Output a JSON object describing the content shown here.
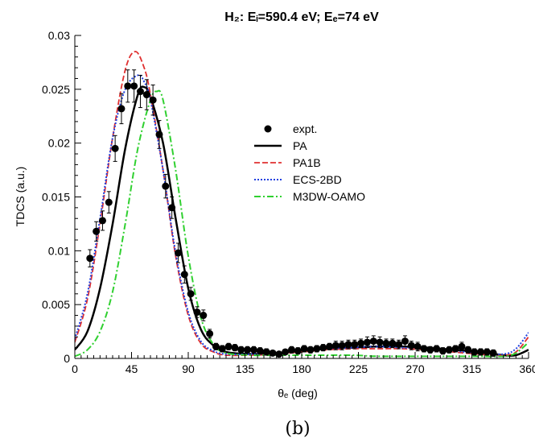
{
  "caption": "(b)",
  "chart_data": {
    "type": "line",
    "title": "H₂: Eᵢ=590.4 eV; Eₑ=74 eV",
    "xlabel": "θₑ (deg)",
    "ylabel": "TDCS (a.u.)",
    "xlim": [
      0,
      360
    ],
    "ylim": [
      0,
      0.03
    ],
    "xticks": [
      0,
      45,
      90,
      135,
      180,
      225,
      270,
      315,
      360
    ],
    "xtick_labels": [
      "0",
      "45",
      "90",
      "135",
      "180",
      "225",
      "270",
      "315",
      "360"
    ],
    "yticks": [
      0,
      0.005,
      0.01,
      0.015,
      0.02,
      0.025,
      0.03
    ],
    "ytick_labels": [
      "0",
      "0.005",
      "0.01",
      "0.015",
      "0.02",
      "0.025",
      "0.03"
    ],
    "grid": false,
    "legend_position": "upper-right",
    "series": [
      {
        "name": "expt.",
        "kind": "scatter",
        "color": "#000000",
        "x": [
          12,
          17,
          22,
          27,
          32,
          37,
          42,
          47,
          52,
          57,
          62,
          67,
          72,
          77,
          82,
          87,
          92,
          97,
          102,
          107,
          112,
          117,
          122,
          127,
          132,
          137,
          142,
          147,
          152,
          157,
          162,
          167,
          172,
          177,
          182,
          187,
          192,
          197,
          202,
          207,
          212,
          217,
          222,
          227,
          232,
          237,
          242,
          247,
          252,
          257,
          262,
          267,
          272,
          277,
          282,
          287,
          292,
          297,
          302,
          307,
          312,
          317,
          322,
          327,
          332
        ],
        "y": [
          0.0093,
          0.0118,
          0.0128,
          0.0145,
          0.0195,
          0.0232,
          0.0253,
          0.0253,
          0.0248,
          0.0245,
          0.024,
          0.0208,
          0.016,
          0.014,
          0.0098,
          0.0078,
          0.006,
          0.0043,
          0.004,
          0.0023,
          0.0011,
          0.0009,
          0.0011,
          0.001,
          0.0008,
          0.0008,
          0.0008,
          0.0007,
          0.0006,
          0.0005,
          0.0004,
          0.0006,
          0.0008,
          0.0007,
          0.0009,
          0.0008,
          0.0009,
          0.001,
          0.0011,
          0.0012,
          0.0012,
          0.0013,
          0.0013,
          0.0014,
          0.0015,
          0.0016,
          0.0015,
          0.0014,
          0.0014,
          0.0013,
          0.0016,
          0.0012,
          0.0011,
          0.0009,
          0.0008,
          0.0009,
          0.0007,
          0.0008,
          0.0009,
          0.0011,
          0.0008,
          0.0006,
          0.0006,
          0.0006,
          0.0005
        ],
        "err": [
          0.0008,
          0.0009,
          0.0009,
          0.001,
          0.0012,
          0.0014,
          0.0015,
          0.0015,
          0.0015,
          0.0014,
          0.0014,
          0.0013,
          0.0011,
          0.001,
          0.0009,
          0.0008,
          0.0006,
          0.0005,
          0.0005,
          0.0004,
          0.0003,
          0.0003,
          0.0003,
          0.0003,
          0.0003,
          0.0003,
          0.0003,
          0.0003,
          0.0003,
          0.0002,
          0.0002,
          0.0002,
          0.0003,
          0.0003,
          0.0003,
          0.0003,
          0.0003,
          0.0003,
          0.0003,
          0.0004,
          0.0004,
          0.0004,
          0.0004,
          0.0004,
          0.0005,
          0.0005,
          0.0005,
          0.0004,
          0.0004,
          0.0004,
          0.0005,
          0.0004,
          0.0004,
          0.0003,
          0.0003,
          0.0003,
          0.0003,
          0.0003,
          0.0003,
          0.0004,
          0.0003,
          0.0003,
          0.0003,
          0.0003,
          0.0003
        ]
      },
      {
        "name": "PA",
        "kind": "line",
        "color": "#000000",
        "dash": "",
        "width": 2.5,
        "x": [
          0,
          10,
          20,
          30,
          40,
          50,
          55,
          60,
          70,
          80,
          90,
          100,
          110,
          120,
          140,
          160,
          180,
          200,
          220,
          240,
          260,
          280,
          300,
          320,
          340,
          350,
          360
        ],
        "y": [
          0.0008,
          0.0025,
          0.0065,
          0.0125,
          0.0195,
          0.0245,
          0.0252,
          0.0243,
          0.02,
          0.013,
          0.0065,
          0.0027,
          0.0012,
          0.0006,
          0.0004,
          0.0005,
          0.0007,
          0.0009,
          0.001,
          0.0011,
          0.0011,
          0.001,
          0.0008,
          0.0006,
          0.0003,
          0.0003,
          0.0008
        ]
      },
      {
        "name": "PA1B",
        "kind": "line",
        "color": "#e03030",
        "dash": "7 3",
        "width": 1.8,
        "x": [
          0,
          10,
          20,
          30,
          40,
          48,
          55,
          60,
          70,
          80,
          90,
          100,
          110,
          120,
          140,
          160,
          180,
          200,
          220,
          240,
          260,
          280,
          300,
          320,
          340,
          350,
          360
        ],
        "y": [
          0.0015,
          0.0055,
          0.0125,
          0.0205,
          0.0268,
          0.0285,
          0.027,
          0.0245,
          0.0175,
          0.0095,
          0.004,
          0.0014,
          0.0006,
          0.0003,
          0.0003,
          0.0004,
          0.0006,
          0.0008,
          0.0009,
          0.0009,
          0.0009,
          0.0008,
          0.0006,
          0.0004,
          0.0003,
          0.0006,
          0.002
        ]
      },
      {
        "name": "ECS-2BD",
        "kind": "line",
        "color": "#2040e0",
        "dash": "2 2",
        "width": 2,
        "x": [
          0,
          10,
          20,
          30,
          40,
          50,
          55,
          60,
          70,
          80,
          90,
          100,
          110,
          120,
          140,
          160,
          180,
          200,
          220,
          240,
          260,
          280,
          300,
          320,
          340,
          350,
          360
        ],
        "y": [
          0.0018,
          0.006,
          0.013,
          0.0205,
          0.025,
          0.0263,
          0.0257,
          0.024,
          0.0175,
          0.0098,
          0.0043,
          0.0016,
          0.0007,
          0.0004,
          0.0004,
          0.0005,
          0.0007,
          0.0009,
          0.001,
          0.0011,
          0.001,
          0.0009,
          0.0007,
          0.0005,
          0.0004,
          0.0009,
          0.0024
        ]
      },
      {
        "name": "M3DW-OAMO",
        "kind": "line",
        "color": "#30d030",
        "dash": "8 3 2 3",
        "width": 2,
        "x": [
          0,
          10,
          20,
          30,
          40,
          50,
          60,
          65,
          70,
          80,
          90,
          100,
          110,
          120,
          140,
          160,
          180,
          200,
          220,
          240,
          260,
          280,
          300,
          320,
          340,
          350,
          360
        ],
        "y": [
          0.0002,
          0.0008,
          0.0025,
          0.0062,
          0.0125,
          0.0195,
          0.024,
          0.0248,
          0.024,
          0.0175,
          0.0095,
          0.0038,
          0.0013,
          0.0005,
          0.0003,
          0.0003,
          0.0003,
          0.0003,
          0.0003,
          0.0002,
          0.0002,
          0.0002,
          0.0002,
          0.0002,
          0.0002,
          0.0005,
          0.0015
        ]
      }
    ]
  }
}
